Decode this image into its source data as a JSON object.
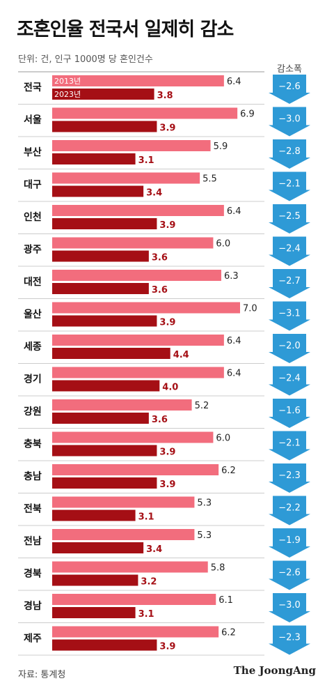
{
  "title": "조혼인율 전국서 일제히 감소",
  "unit_note": "단위: 건, 인구 1000명 당 혼인건수",
  "diff_header": "감소폭",
  "source": "자료: 통계청",
  "credit": "The JoongAng",
  "colors": {
    "y2013": "#f26d7d",
    "y2023": "#a50f15",
    "arrow": "#2e9ad6"
  },
  "chart_data": {
    "type": "bar",
    "orientation": "horizontal",
    "categories": [
      "전국",
      "서울",
      "부산",
      "대구",
      "인천",
      "광주",
      "대전",
      "울산",
      "세종",
      "경기",
      "강원",
      "충북",
      "충남",
      "전북",
      "전남",
      "경북",
      "경남",
      "제주"
    ],
    "series": [
      {
        "name": "2013년",
        "values": [
          6.4,
          6.9,
          5.9,
          5.5,
          6.4,
          6.0,
          6.3,
          7.0,
          6.4,
          6.4,
          5.2,
          6.0,
          6.2,
          5.3,
          5.3,
          5.8,
          6.1,
          6.2
        ]
      },
      {
        "name": "2023년",
        "values": [
          3.8,
          3.9,
          3.1,
          3.4,
          3.9,
          3.6,
          3.6,
          3.9,
          4.4,
          4.0,
          3.6,
          3.9,
          3.9,
          3.1,
          3.4,
          3.2,
          3.1,
          3.9
        ]
      }
    ],
    "labels_2013": [
      "6.4",
      "6.9",
      "5.9",
      "5.5",
      "6.4",
      "6.0",
      "6.3",
      "7.0",
      "6.4",
      "6.4",
      "5.2",
      "6.0",
      "6.2",
      "5.3",
      "5.3",
      "5.8",
      "6.1",
      "6.2"
    ],
    "labels_2023": [
      "3.8",
      "3.9",
      "3.1",
      "3.4",
      "3.9",
      "3.6",
      "3.6",
      "3.9",
      "4.4",
      "4.0",
      "3.6",
      "3.9",
      "3.9",
      "3.1",
      "3.4",
      "3.2",
      "3.1",
      "3.9"
    ],
    "differences": [
      "−2.6",
      "−3.0",
      "−2.8",
      "−2.1",
      "−2.5",
      "−2.4",
      "−2.7",
      "−3.1",
      "−2.0",
      "−2.4",
      "−1.6",
      "−2.1",
      "−2.3",
      "−2.2",
      "−1.9",
      "−2.6",
      "−3.0",
      "−2.3"
    ],
    "legend_in_first_row": true,
    "xlim": [
      0,
      7.0
    ]
  }
}
